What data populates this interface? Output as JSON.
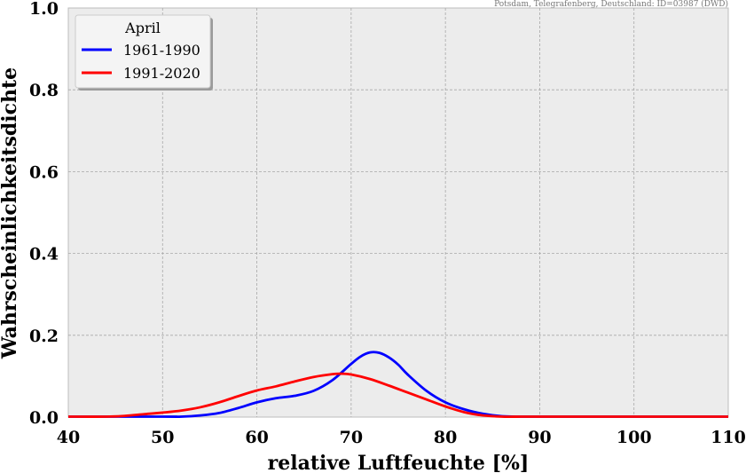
{
  "chart_data": {
    "type": "line",
    "source_note": "Potsdam, Telegrafenberg, Deutschland: ID=03987 (DWD)",
    "xlabel": "relative Luftfeuchte [%]",
    "ylabel": "Wahrscheinlichkeitsdichte",
    "xlim": [
      40,
      110
    ],
    "ylim": [
      0,
      1.0
    ],
    "xticks": [
      "40",
      "50",
      "60",
      "70",
      "80",
      "90",
      "100",
      "110"
    ],
    "yticks": [
      "0.0",
      "0.2",
      "0.4",
      "0.6",
      "0.8",
      "1.0"
    ],
    "grid": true,
    "legend": {
      "title": "April",
      "position": "top-left"
    },
    "series": [
      {
        "name": "1961-1990",
        "color": "#0000ff",
        "x": [
          40,
          50,
          52,
          54,
          56,
          58,
          60,
          62,
          64,
          66,
          68,
          70,
          71,
          72,
          73,
          74,
          75,
          76,
          78,
          80,
          82,
          84,
          86,
          88,
          90,
          110
        ],
        "y": [
          0,
          0,
          0.001,
          0.004,
          0.01,
          0.022,
          0.036,
          0.046,
          0.052,
          0.064,
          0.09,
          0.13,
          0.148,
          0.158,
          0.157,
          0.146,
          0.128,
          0.104,
          0.064,
          0.036,
          0.019,
          0.008,
          0.002,
          0,
          0,
          0
        ]
      },
      {
        "name": "1991-2020",
        "color": "#ff0000",
        "x": [
          40,
          44,
          46,
          48,
          50,
          52,
          54,
          56,
          58,
          60,
          62,
          64,
          66,
          68,
          69,
          70,
          72,
          74,
          76,
          78,
          80,
          82,
          84,
          86,
          88,
          90,
          110
        ],
        "y": [
          0,
          0.001,
          0.003,
          0.007,
          0.011,
          0.016,
          0.024,
          0.036,
          0.051,
          0.065,
          0.075,
          0.087,
          0.098,
          0.105,
          0.106,
          0.104,
          0.093,
          0.077,
          0.06,
          0.043,
          0.026,
          0.012,
          0.004,
          0.001,
          0,
          0,
          0
        ]
      }
    ]
  }
}
